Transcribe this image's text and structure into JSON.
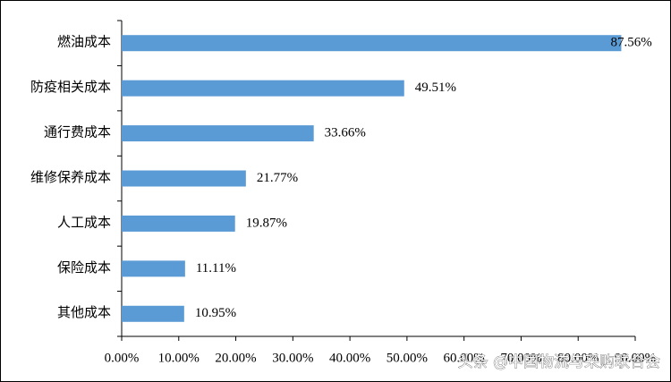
{
  "chart_data": {
    "type": "bar",
    "orientation": "horizontal",
    "categories": [
      "燃油成本",
      "防疫相关成本",
      "通行费成本",
      "维修保养成本",
      "人工成本",
      "保险成本",
      "其他成本"
    ],
    "values": [
      87.56,
      49.51,
      33.66,
      21.77,
      19.87,
      11.11,
      10.95
    ],
    "value_labels": [
      "87.56%",
      "49.51%",
      "33.66%",
      "21.77%",
      "19.87%",
      "11.11%",
      "10.95%"
    ],
    "color": "#5b9bd5",
    "xlim": [
      0,
      90
    ],
    "xticks": [
      {
        "value": 0,
        "label": "0.00%"
      },
      {
        "value": 10,
        "label": "10.00%"
      },
      {
        "value": 20,
        "label": "20.00%"
      },
      {
        "value": 30,
        "label": "30.00%"
      },
      {
        "value": 40,
        "label": "40.00%"
      },
      {
        "value": 50,
        "label": "50.00%"
      },
      {
        "value": 60,
        "label": "60.00%"
      },
      {
        "value": 70,
        "label": "70.00%"
      },
      {
        "value": 80,
        "label": "80.00%"
      },
      {
        "value": 90,
        "label": "90.00%"
      }
    ],
    "grid": false
  },
  "watermark": "头条 @中国物流与采购联合会"
}
